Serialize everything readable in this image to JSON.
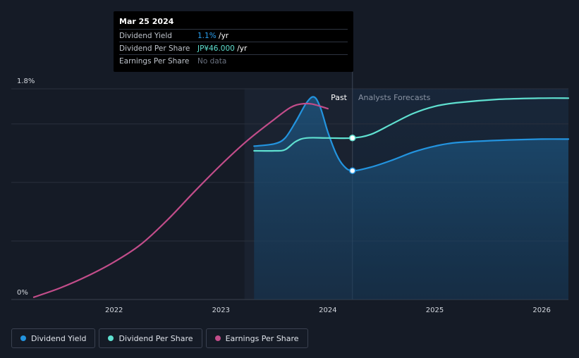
{
  "tooltip": {
    "date": "Mar 25 2024",
    "rows": [
      {
        "label": "Dividend Yield",
        "value": "1.1%",
        "unit": " /yr"
      },
      {
        "label": "Dividend Per Share",
        "value": "JP¥46.000",
        "unit": " /yr"
      },
      {
        "label": "Earnings Per Share",
        "value": "No data"
      }
    ]
  },
  "colors": {
    "background": "#151b26",
    "dividend_yield": "#2394df",
    "dividend_per_share": "#5fe0d0",
    "earnings_per_share": "#c24d8a"
  },
  "chart_data": {
    "type": "line",
    "title": "",
    "xlabel": "",
    "ylabel": "",
    "y_tick_labels": {
      "top": "1.8%",
      "bottom": "0%"
    },
    "ylim": [
      0,
      1.8
    ],
    "xlim": [
      2021.25,
      2026.25
    ],
    "x_ticks": [
      "2022",
      "2023",
      "2024",
      "2025",
      "2026"
    ],
    "x_tick_values": [
      2022,
      2023,
      2024,
      2025,
      2026
    ],
    "divider_x": 2024.23,
    "past_label": "Past",
    "forecast_label": "Analysts Forecasts",
    "series": [
      {
        "name": "Dividend Yield",
        "key": "dividend_yield",
        "points": [
          [
            2023.31,
            1.31
          ],
          [
            2023.5,
            1.33
          ],
          [
            2023.6,
            1.38
          ],
          [
            2023.7,
            1.52
          ],
          [
            2023.8,
            1.68
          ],
          [
            2023.87,
            1.73
          ],
          [
            2023.93,
            1.64
          ],
          [
            2024.0,
            1.43
          ],
          [
            2024.08,
            1.24
          ],
          [
            2024.15,
            1.14
          ],
          [
            2024.23,
            1.1
          ],
          [
            2024.4,
            1.13
          ],
          [
            2024.6,
            1.19
          ],
          [
            2024.8,
            1.26
          ],
          [
            2025.0,
            1.31
          ],
          [
            2025.2,
            1.34
          ],
          [
            2025.6,
            1.36
          ],
          [
            2026.0,
            1.37
          ],
          [
            2026.25,
            1.37
          ]
        ],
        "area": true
      },
      {
        "name": "Dividend Per Share",
        "key": "dividend_per_share",
        "points": [
          [
            2023.31,
            1.27
          ],
          [
            2023.5,
            1.27
          ],
          [
            2023.6,
            1.28
          ],
          [
            2023.7,
            1.35
          ],
          [
            2023.8,
            1.38
          ],
          [
            2024.0,
            1.38
          ],
          [
            2024.23,
            1.38
          ],
          [
            2024.4,
            1.41
          ],
          [
            2024.6,
            1.5
          ],
          [
            2024.8,
            1.59
          ],
          [
            2025.0,
            1.65
          ],
          [
            2025.2,
            1.68
          ],
          [
            2025.6,
            1.71
          ],
          [
            2026.0,
            1.72
          ],
          [
            2026.25,
            1.72
          ]
        ]
      },
      {
        "name": "Earnings Per Share",
        "key": "earnings_per_share",
        "points": [
          [
            2021.25,
            0.02
          ],
          [
            2021.5,
            0.1
          ],
          [
            2021.75,
            0.2
          ],
          [
            2022.0,
            0.32
          ],
          [
            2022.25,
            0.47
          ],
          [
            2022.5,
            0.68
          ],
          [
            2022.75,
            0.92
          ],
          [
            2023.0,
            1.15
          ],
          [
            2023.25,
            1.36
          ],
          [
            2023.5,
            1.54
          ],
          [
            2023.65,
            1.64
          ],
          [
            2023.75,
            1.67
          ],
          [
            2023.85,
            1.67
          ],
          [
            2024.0,
            1.63
          ]
        ]
      }
    ]
  },
  "legend": [
    {
      "label": "Dividend Yield",
      "key": "dividend_yield"
    },
    {
      "label": "Dividend Per Share",
      "key": "dividend_per_share"
    },
    {
      "label": "Earnings Per Share",
      "key": "earnings_per_share"
    }
  ]
}
